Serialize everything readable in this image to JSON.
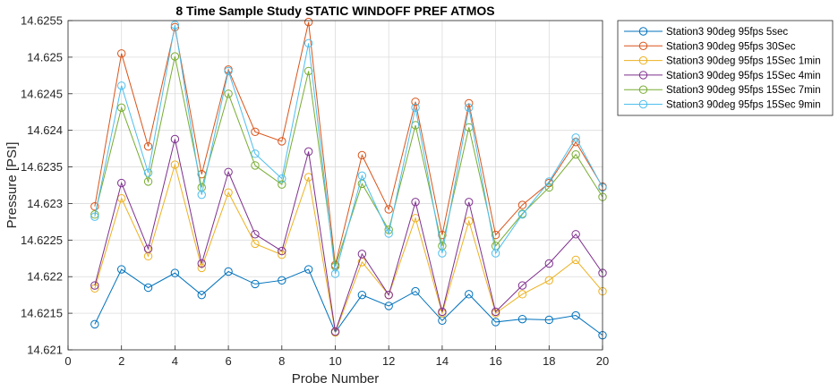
{
  "chart_data": {
    "type": "line",
    "title": "8 Time Sample Study STATIC WINDOFF PREF ATMOS",
    "xlabel": "Probe Number",
    "ylabel": "Pressure [PSI]",
    "xlim": [
      0,
      20
    ],
    "ylim": [
      14.621,
      14.6255
    ],
    "xticks": [
      0,
      2,
      4,
      6,
      8,
      10,
      12,
      14,
      16,
      18,
      20
    ],
    "xtick_labels": [
      "0",
      "2",
      "4",
      "6",
      "8",
      "10",
      "12",
      "14",
      "16",
      "18",
      "20"
    ],
    "yticks": [
      14.621,
      14.6215,
      14.622,
      14.6225,
      14.623,
      14.6235,
      14.624,
      14.6245,
      14.625,
      14.6255
    ],
    "ytick_labels": [
      "14.621",
      "14.6215",
      "14.622",
      "14.6225",
      "14.623",
      "14.6235",
      "14.624",
      "14.6245",
      "14.625",
      "14.6255"
    ],
    "grid": true,
    "legend_position": "outside-top-right",
    "marker": "circle",
    "x": [
      1,
      2,
      3,
      4,
      5,
      6,
      7,
      8,
      9,
      10,
      11,
      12,
      13,
      14,
      15,
      16,
      17,
      18,
      19,
      20
    ],
    "series": [
      {
        "name": "Station3 90deg 95fps 5sec",
        "color": "#0072BD",
        "values": [
          14.62135,
          14.6221,
          14.62185,
          14.62205,
          14.62175,
          14.62207,
          14.6219,
          14.62195,
          14.6221,
          14.62124,
          14.62175,
          14.6216,
          14.6218,
          14.6214,
          14.62176,
          14.62138,
          14.62142,
          14.62141,
          14.62147,
          14.6212
        ]
      },
      {
        "name": "Station3 90deg 95fps 30Sec",
        "color": "#D95319",
        "values": [
          14.62296,
          14.62505,
          14.62378,
          14.62541,
          14.6234,
          14.62483,
          14.62398,
          14.62385,
          14.62548,
          14.62216,
          14.62366,
          14.62292,
          14.62439,
          14.62257,
          14.62437,
          14.62257,
          14.62298,
          14.62328,
          14.62384,
          14.62323
        ]
      },
      {
        "name": "Station3 90deg 95fps 15Sec 1min",
        "color": "#EDB120",
        "values": [
          14.62184,
          14.62307,
          14.62228,
          14.62353,
          14.62212,
          14.62315,
          14.62245,
          14.6223,
          14.62336,
          14.62124,
          14.6222,
          14.62175,
          14.6228,
          14.6215,
          14.62276,
          14.6215,
          14.62176,
          14.62195,
          14.62223,
          14.6218
        ]
      },
      {
        "name": "Station3 90deg 95fps 15Sec 4min",
        "color": "#7E2F8E",
        "values": [
          14.62188,
          14.62328,
          14.62238,
          14.62388,
          14.62218,
          14.62343,
          14.62258,
          14.62235,
          14.62371,
          14.62125,
          14.62231,
          14.62175,
          14.62302,
          14.62152,
          14.62302,
          14.62152,
          14.62188,
          14.62218,
          14.62258,
          14.62205
        ]
      },
      {
        "name": "Station3 90deg 95fps 15Sec 7min",
        "color": "#77AC30",
        "values": [
          14.62285,
          14.62431,
          14.6233,
          14.62501,
          14.62322,
          14.6245,
          14.62352,
          14.62326,
          14.62481,
          14.62214,
          14.62327,
          14.62264,
          14.62407,
          14.62242,
          14.62404,
          14.62242,
          14.62286,
          14.62322,
          14.62367,
          14.62309
        ]
      },
      {
        "name": "Station3 90deg 95fps 15Sec 9min",
        "color": "#4DBEEE",
        "values": [
          14.62282,
          14.62461,
          14.62342,
          14.62544,
          14.62312,
          14.62481,
          14.62368,
          14.62334,
          14.62519,
          14.62204,
          14.62338,
          14.62259,
          14.62431,
          14.62232,
          14.62431,
          14.62232,
          14.62285,
          14.6233,
          14.6239,
          14.62322
        ]
      }
    ]
  }
}
